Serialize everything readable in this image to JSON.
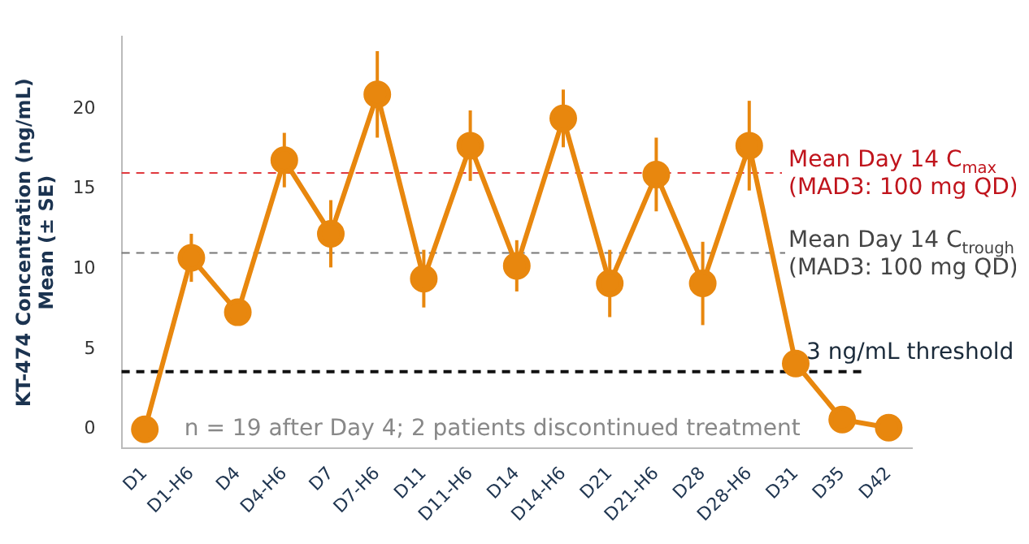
{
  "chart_data": {
    "type": "line",
    "ylabel": "KT-474 Concentration (ng/mL)\nMean (± SE)",
    "categories": [
      "D1",
      "D1-H6",
      "D4",
      "D4-H6",
      "D7",
      "D7-H6",
      "D11",
      "D11-H6",
      "D14",
      "D14-H6",
      "D21",
      "D21-H6",
      "D28",
      "D28-H6",
      "D31",
      "D35",
      "D42"
    ],
    "series": [
      {
        "color": "#e8870e",
        "values": [
          0,
          10.7,
          7.3,
          16.8,
          12.2,
          20.9,
          9.4,
          17.7,
          10.2,
          19.4,
          9.1,
          15.9,
          9.1,
          17.7,
          4.1,
          0.6,
          0.1
        ],
        "errors": [
          null,
          1.5,
          0.6,
          1.7,
          2.1,
          2.7,
          1.8,
          2.2,
          1.6,
          1.8,
          2.1,
          2.3,
          2.6,
          2.8,
          0.8,
          null,
          null
        ]
      }
    ],
    "ylim": [
      -1.2,
      24.5
    ],
    "yticks": [
      0,
      5,
      10,
      15,
      20
    ],
    "ref_lines": [
      {
        "axis": "y",
        "value": 16,
        "color": "#e0393e",
        "line_style": "dashed"
      },
      {
        "axis": "y",
        "value": 11,
        "color": "#777777",
        "line_style": "dashed"
      },
      {
        "axis": "y",
        "value": 3.6,
        "color": "#111111",
        "line_style": "dashed"
      }
    ],
    "annotations": [
      "n = 19 after Day 4; 2 patients discontinued treatment",
      "Mean Day 14 C$_{max}$\n(MAD3: 100 mg QD)",
      "Mean Day 14 C$_{trough}$\n(MAD3: 100 mg QD)",
      "3 ng/mL threshold"
    ],
    "marker": "circle",
    "line_style": "solid",
    "grid": false,
    "legend": false
  }
}
